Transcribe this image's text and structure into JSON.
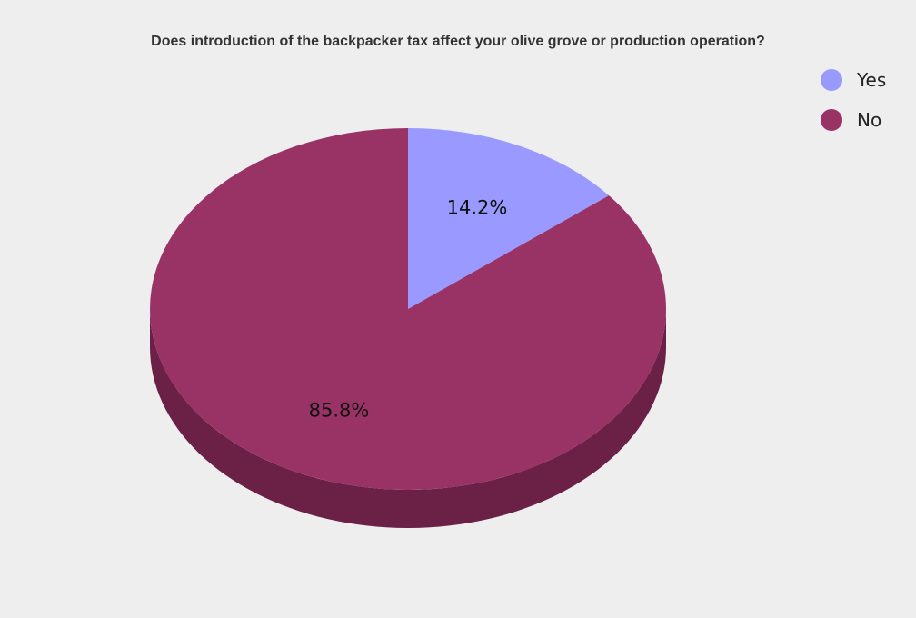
{
  "chart_data": {
    "type": "pie",
    "title": "Does introduction of the backpacker tax affect your olive grove or production operation?",
    "series": [
      {
        "name": "Yes",
        "value": 14.2,
        "label": "14.2%",
        "color": "#9999ff",
        "side_color": "#6b6bb3"
      },
      {
        "name": "No",
        "value": 85.8,
        "label": "85.8%",
        "color": "#993366",
        "side_color": "#6b2046"
      }
    ],
    "three_d": true,
    "start_angle": "12 o'clock",
    "direction": "clockwise",
    "legend_position": "top-right",
    "background": "#eeeeee"
  }
}
